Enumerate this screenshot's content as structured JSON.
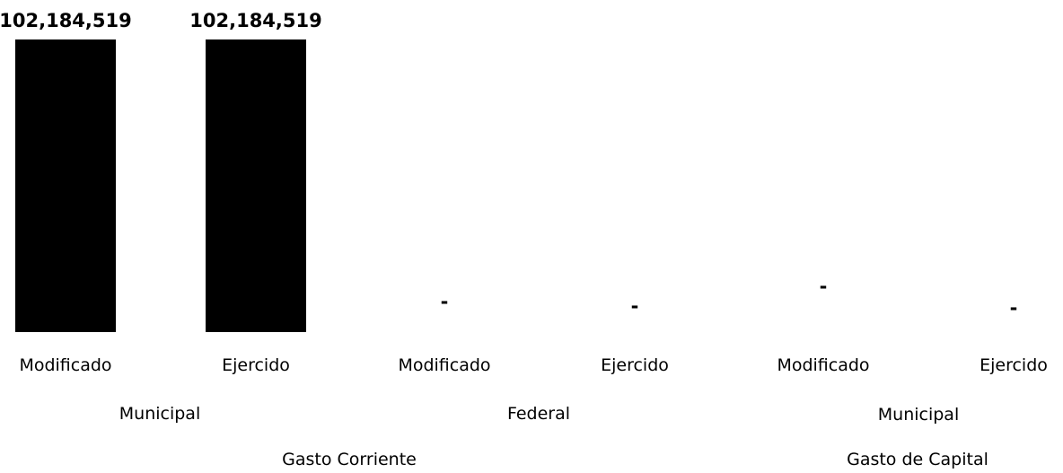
{
  "chart_data": {
    "type": "bar",
    "categories": [
      "Modificado",
      "Ejercido",
      "Modificado",
      "Ejercido",
      "Modificado",
      "Ejercido"
    ],
    "groups_level1": [
      "Municipal",
      "Federal",
      "Municipal"
    ],
    "groups_level2": [
      "Gasto Corriente",
      "Gasto de Capital"
    ],
    "series": [
      {
        "values": [
          102184519,
          102184519,
          0,
          0,
          0,
          0
        ],
        "value_labels": [
          "102,184,519",
          "102,184,519",
          "-",
          "-",
          "-",
          "-"
        ]
      }
    ],
    "ylim": [
      0,
      102184519
    ],
    "bar_color": "#000000",
    "grid": false,
    "legend": "none",
    "title": "",
    "xlabel": "",
    "ylabel": ""
  }
}
